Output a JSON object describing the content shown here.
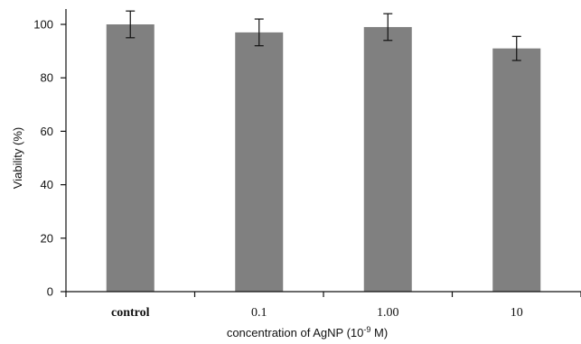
{
  "chart_data": {
    "type": "bar",
    "categories": [
      "control",
      "0.1",
      "1.00",
      "10"
    ],
    "values": [
      100,
      97,
      99,
      91
    ],
    "error": [
      5,
      5,
      5,
      4.5
    ],
    "xlabel": {
      "pre": "concentration of AgNP (10",
      "sup": "-9",
      "post": " M)"
    },
    "ylabel": "Viability (%)",
    "ylim": [
      0,
      100
    ],
    "yticks": [
      0,
      20,
      40,
      60,
      80,
      100
    ],
    "bar_color": "#808080",
    "grid": false
  }
}
